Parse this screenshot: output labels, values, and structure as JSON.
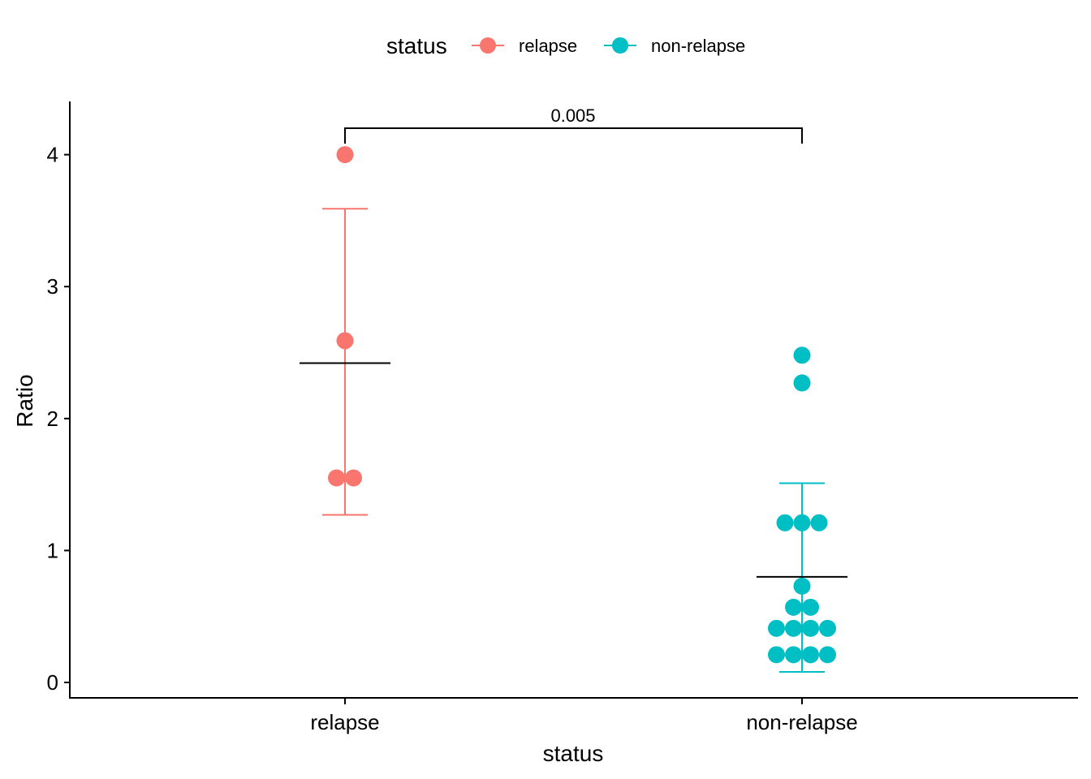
{
  "chart_data": {
    "type": "scatter",
    "subtype": "dotplot with mean and standard deviation error bars",
    "xlabel": "status",
    "ylabel": "Ratio",
    "categories": [
      "relapse",
      "non-relapse"
    ],
    "ylim": [
      -0.12,
      4.4
    ],
    "y_ticks": [
      "0",
      "1",
      "2",
      "3",
      "4"
    ],
    "grid": false,
    "legend": {
      "title": "status",
      "position": "top",
      "entries": [
        {
          "name": "relapse",
          "color": "#F8766D"
        },
        {
          "name": "non-relapse",
          "color": "#00BFC4"
        }
      ]
    },
    "series": [
      {
        "name": "relapse",
        "color": "#F8766D",
        "values": [
          4.0,
          2.59,
          1.55,
          1.55
        ],
        "mean": 2.42,
        "error_bar": [
          1.27,
          3.59
        ]
      },
      {
        "name": "non-relapse",
        "color": "#00BFC4",
        "values": [
          2.48,
          2.27,
          1.21,
          1.21,
          1.21,
          0.73,
          0.57,
          0.57,
          0.41,
          0.41,
          0.41,
          0.41,
          0.21,
          0.21,
          0.21,
          0.21
        ],
        "mean": 0.8,
        "error_bar": [
          0.08,
          1.51
        ]
      }
    ],
    "annotations": [
      {
        "type": "significance-bracket",
        "between": [
          "relapse",
          "non-relapse"
        ],
        "text": "0.005"
      }
    ]
  }
}
